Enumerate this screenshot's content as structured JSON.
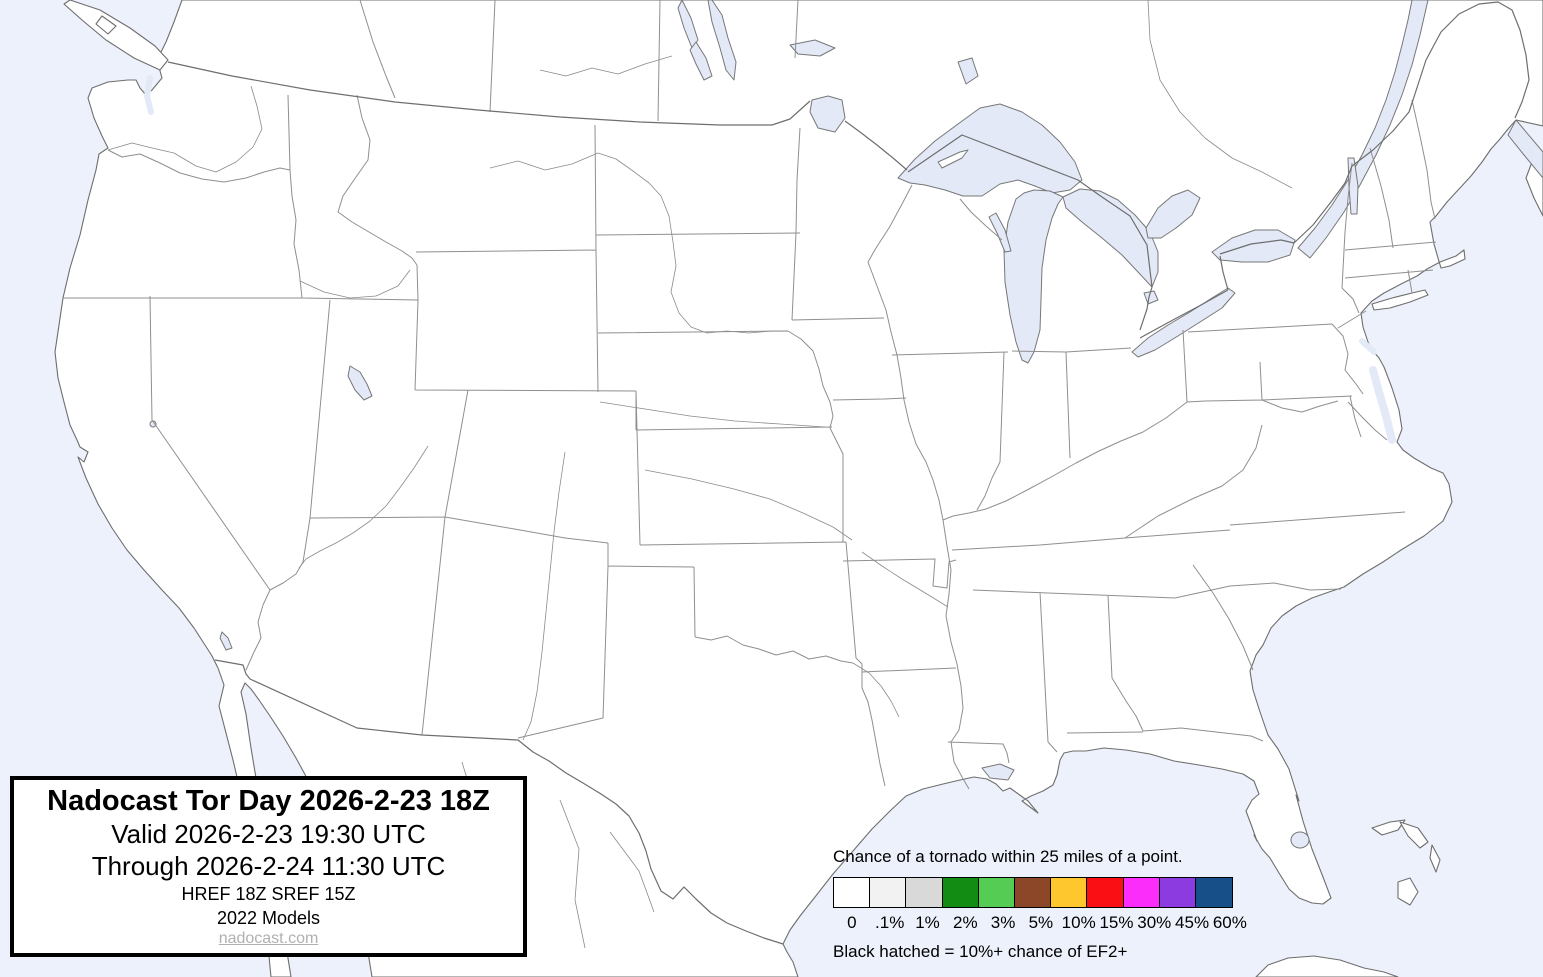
{
  "title_box": {
    "title": "Nadocast Tor Day 2026-2-23 18Z",
    "valid": "Valid 2026-2-23 19:30 UTC",
    "through": "Through 2026-2-24 11:30 UTC",
    "models_line1": "HREF 18Z SREF 15Z",
    "models_line2": "2022 Models",
    "link": "nadocast.com"
  },
  "legend": {
    "heading": "Chance of a tornado within 25 miles of a point.",
    "note": "Black hatched = 10%+ chance of EF2+",
    "bins": [
      {
        "label": "0",
        "color": "#ffffff"
      },
      {
        "label": ".1%",
        "color": "#f2f2f2"
      },
      {
        "label": "1%",
        "color": "#d9d9d9"
      },
      {
        "label": "2%",
        "color": "#128c12"
      },
      {
        "label": "3%",
        "color": "#55cd55"
      },
      {
        "label": "5%",
        "color": "#8b4728"
      },
      {
        "label": "10%",
        "color": "#fec72e"
      },
      {
        "label": "15%",
        "color": "#fa0f14"
      },
      {
        "label": "30%",
        "color": "#fb2dfb"
      },
      {
        "label": "45%",
        "color": "#8c3be0"
      },
      {
        "label": "60%",
        "color": "#175089"
      }
    ]
  },
  "map_colors": {
    "ocean": "#edf1fb",
    "lake": "#e3e9f7",
    "land": "#ffffff",
    "state_border": "#8f8f8f",
    "national_border": "#6e6e6e",
    "river": "#8a8a8a"
  }
}
